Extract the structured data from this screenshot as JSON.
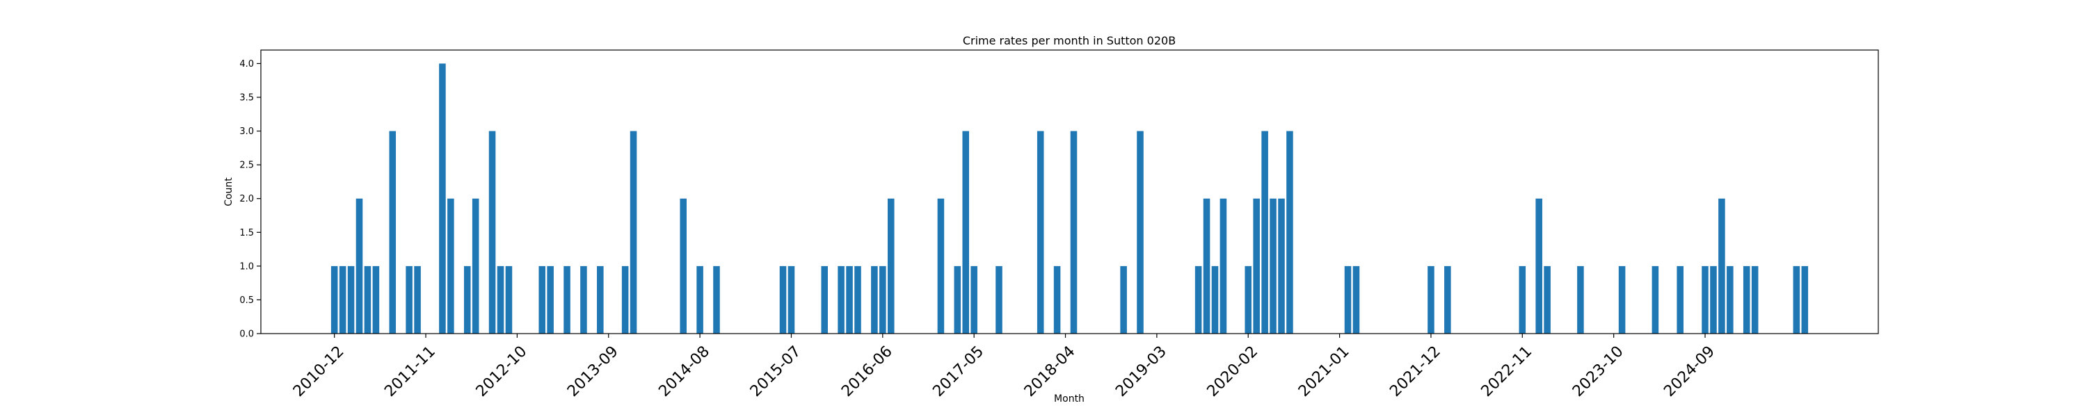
{
  "chart_data": {
    "type": "bar",
    "title": "Crime rates per month in Sutton 020B",
    "xlabel": "Month",
    "ylabel": "Count",
    "ylim": [
      0,
      4.2
    ],
    "yticks": [
      "0.0",
      "0.5",
      "1.0",
      "1.5",
      "2.0",
      "2.5",
      "3.0",
      "3.5",
      "4.0"
    ],
    "xticks": [
      "2010-12",
      "2011-11",
      "2012-10",
      "2013-09",
      "2014-08",
      "2015-07",
      "2016-06",
      "2017-05",
      "2018-04",
      "2019-03",
      "2020-02",
      "2021-01",
      "2021-12",
      "2022-11",
      "2023-10",
      "2024-09"
    ],
    "grid": false,
    "color": "#1f77b4",
    "x": [
      "2010-12",
      "2011-01",
      "2011-02",
      "2011-03",
      "2011-04",
      "2011-05",
      "2011-07",
      "2011-09",
      "2011-10",
      "2012-01",
      "2012-02",
      "2012-04",
      "2012-05",
      "2012-07",
      "2012-08",
      "2012-09",
      "2013-01",
      "2013-02",
      "2013-04",
      "2013-06",
      "2013-08",
      "2013-11",
      "2013-12",
      "2014-06",
      "2014-08",
      "2014-10",
      "2015-06",
      "2015-07",
      "2015-11",
      "2016-01",
      "2016-02",
      "2016-03",
      "2016-05",
      "2016-06",
      "2016-07",
      "2017-01",
      "2017-03",
      "2017-04",
      "2017-05",
      "2017-08",
      "2018-01",
      "2018-03",
      "2018-05",
      "2018-11",
      "2019-01",
      "2019-08",
      "2019-09",
      "2019-10",
      "2019-11",
      "2020-02",
      "2020-03",
      "2020-04",
      "2020-05",
      "2020-06",
      "2020-07",
      "2021-02",
      "2021-03",
      "2021-12",
      "2022-02",
      "2022-11",
      "2023-01",
      "2023-02",
      "2023-06",
      "2023-11",
      "2024-03",
      "2024-06",
      "2024-09",
      "2024-10",
      "2024-11",
      "2024-12",
      "2025-02",
      "2025-03",
      "2025-08",
      "2025-09"
    ],
    "values": [
      1,
      1,
      1,
      2,
      1,
      1,
      3,
      1,
      1,
      4,
      2,
      1,
      2,
      3,
      1,
      1,
      1,
      1,
      1,
      1,
      1,
      1,
      3,
      2,
      1,
      1,
      1,
      1,
      1,
      1,
      1,
      1,
      1,
      1,
      2,
      2,
      1,
      3,
      1,
      1,
      3,
      1,
      3,
      1,
      3,
      1,
      2,
      1,
      2,
      1,
      2,
      3,
      2,
      2,
      3,
      1,
      1,
      1,
      1,
      1,
      2,
      1,
      1,
      1,
      1,
      1,
      1,
      1,
      2,
      1,
      1,
      1,
      1,
      1
    ]
  }
}
